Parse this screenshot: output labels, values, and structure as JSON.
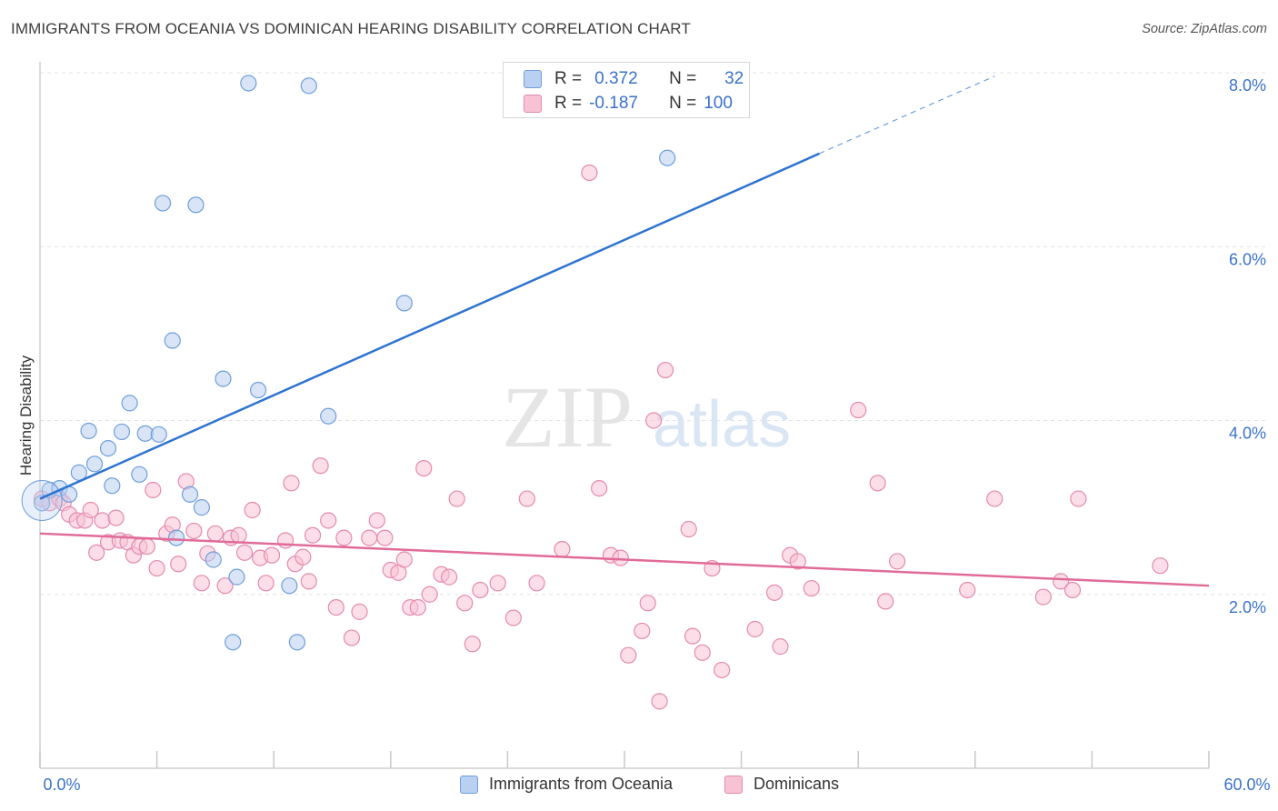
{
  "title": "IMMIGRANTS FROM OCEANIA VS DOMINICAN HEARING DISABILITY CORRELATION CHART",
  "source": "Source: ZipAtlas.com",
  "watermark": {
    "zip": "ZIP",
    "atlas": "atlas"
  },
  "colors": {
    "blue_fill": "#b9d0f0",
    "blue_stroke": "#6f9fdb",
    "blue_line": "#2f74d0",
    "pink_fill": "#f7c2d4",
    "pink_stroke": "#e58ab0",
    "pink_line": "#e06b98",
    "axis_text": "#3a72c9",
    "grid": "#e3e3e3"
  },
  "legend_stats": [
    {
      "r_label": "R =",
      "r_value": "0.372",
      "n_label": "N =",
      "n_value": "32"
    },
    {
      "r_label": "R =",
      "r_value": "-0.187",
      "n_label": "N =",
      "n_value": "100"
    }
  ],
  "legend_bottom": [
    "Immigrants from Oceania",
    "Dominicans"
  ],
  "chart_data": {
    "type": "scatter",
    "title": "IMMIGRANTS FROM OCEANIA VS DOMINICAN HEARING DISABILITY CORRELATION CHART",
    "xlabel": "",
    "ylabel": "Hearing Disability",
    "xlim": [
      0,
      60
    ],
    "ylim": [
      0,
      8
    ],
    "x_tick_labels": [
      "0.0%",
      "60.0%"
    ],
    "y_ticks": [
      2,
      4,
      6,
      8
    ],
    "y_tick_labels": [
      "2.0%",
      "4.0%",
      "6.0%",
      "8.0%"
    ],
    "grid": true,
    "legend_position": "top-center",
    "series": [
      {
        "name": "Immigrants from Oceania",
        "color": "#6f9fdb",
        "r": 0.372,
        "n": 32,
        "trend": {
          "x0": 0,
          "y0": 3.1,
          "x1": 40,
          "y1": 7.07,
          "dashed_to_x": 49,
          "dashed_to_y": 7.96
        },
        "points": [
          [
            0.1,
            3.05
          ],
          [
            0.5,
            3.2
          ],
          [
            1.0,
            3.22
          ],
          [
            1.5,
            3.15
          ],
          [
            2.0,
            3.4
          ],
          [
            2.5,
            3.88
          ],
          [
            2.8,
            3.5
          ],
          [
            3.5,
            3.68
          ],
          [
            3.7,
            3.25
          ],
          [
            4.2,
            3.87
          ],
          [
            4.6,
            4.2
          ],
          [
            5.1,
            3.38
          ],
          [
            5.4,
            3.85
          ],
          [
            6.1,
            3.84
          ],
          [
            6.3,
            6.5
          ],
          [
            6.8,
            4.92
          ],
          [
            7.0,
            2.65
          ],
          [
            7.7,
            3.15
          ],
          [
            8.0,
            6.48
          ],
          [
            8.3,
            3.0
          ],
          [
            8.9,
            2.4
          ],
          [
            9.4,
            4.48
          ],
          [
            9.9,
            1.45
          ],
          [
            10.1,
            2.2
          ],
          [
            10.7,
            7.88
          ],
          [
            11.2,
            4.35
          ],
          [
            12.8,
            2.1
          ],
          [
            13.2,
            1.45
          ],
          [
            13.8,
            7.85
          ],
          [
            14.8,
            4.05
          ],
          [
            18.7,
            5.35
          ],
          [
            32.2,
            7.02
          ]
        ]
      },
      {
        "name": "Dominicans",
        "color": "#e58ab0",
        "r": -0.187,
        "n": 100,
        "trend": {
          "x0": 0,
          "y0": 2.7,
          "x1": 60,
          "y1": 2.1
        },
        "points": [
          [
            0.1,
            3.1
          ],
          [
            0.5,
            3.05
          ],
          [
            1.0,
            3.1
          ],
          [
            1.2,
            3.05
          ],
          [
            1.5,
            2.92
          ],
          [
            1.9,
            2.85
          ],
          [
            2.3,
            2.85
          ],
          [
            2.6,
            2.97
          ],
          [
            2.9,
            2.48
          ],
          [
            3.2,
            2.85
          ],
          [
            3.5,
            2.6
          ],
          [
            3.9,
            2.88
          ],
          [
            4.1,
            2.62
          ],
          [
            4.5,
            2.6
          ],
          [
            4.8,
            2.45
          ],
          [
            5.1,
            2.55
          ],
          [
            5.5,
            2.55
          ],
          [
            5.8,
            3.2
          ],
          [
            6.0,
            2.3
          ],
          [
            6.5,
            2.7
          ],
          [
            6.8,
            2.8
          ],
          [
            7.1,
            2.35
          ],
          [
            7.5,
            3.3
          ],
          [
            7.9,
            2.73
          ],
          [
            8.3,
            2.13
          ],
          [
            8.6,
            2.47
          ],
          [
            9.0,
            2.7
          ],
          [
            9.5,
            2.1
          ],
          [
            9.8,
            2.65
          ],
          [
            10.2,
            2.68
          ],
          [
            10.5,
            2.48
          ],
          [
            10.9,
            2.97
          ],
          [
            11.3,
            2.42
          ],
          [
            11.6,
            2.13
          ],
          [
            11.9,
            2.45
          ],
          [
            12.6,
            2.62
          ],
          [
            12.9,
            3.28
          ],
          [
            13.1,
            2.35
          ],
          [
            13.5,
            2.43
          ],
          [
            13.8,
            2.15
          ],
          [
            14.0,
            2.68
          ],
          [
            14.4,
            3.48
          ],
          [
            14.8,
            2.85
          ],
          [
            15.2,
            1.85
          ],
          [
            15.6,
            2.65
          ],
          [
            16.0,
            1.5
          ],
          [
            16.4,
            1.8
          ],
          [
            16.9,
            2.65
          ],
          [
            17.3,
            2.85
          ],
          [
            17.7,
            2.65
          ],
          [
            18.0,
            2.28
          ],
          [
            18.4,
            2.25
          ],
          [
            18.7,
            2.4
          ],
          [
            19.0,
            1.85
          ],
          [
            19.4,
            1.85
          ],
          [
            19.7,
            3.45
          ],
          [
            20.0,
            2.0
          ],
          [
            20.6,
            2.23
          ],
          [
            21.0,
            2.2
          ],
          [
            21.4,
            3.1
          ],
          [
            21.8,
            1.9
          ],
          [
            22.2,
            1.43
          ],
          [
            22.6,
            2.05
          ],
          [
            23.5,
            2.13
          ],
          [
            24.3,
            1.73
          ],
          [
            25.0,
            3.1
          ],
          [
            25.5,
            2.13
          ],
          [
            26.8,
            2.52
          ],
          [
            28.2,
            6.85
          ],
          [
            28.7,
            3.22
          ],
          [
            29.3,
            2.45
          ],
          [
            29.8,
            2.42
          ],
          [
            30.2,
            1.3
          ],
          [
            30.9,
            1.58
          ],
          [
            31.2,
            1.9
          ],
          [
            31.5,
            4.0
          ],
          [
            31.8,
            0.77
          ],
          [
            32.1,
            4.58
          ],
          [
            33.3,
            2.75
          ],
          [
            33.5,
            1.52
          ],
          [
            34.0,
            1.33
          ],
          [
            34.5,
            2.3
          ],
          [
            35.0,
            1.13
          ],
          [
            36.7,
            1.6
          ],
          [
            37.7,
            2.02
          ],
          [
            38.0,
            1.4
          ],
          [
            38.5,
            2.45
          ],
          [
            38.9,
            2.38
          ],
          [
            39.6,
            2.07
          ],
          [
            42.0,
            4.12
          ],
          [
            43.0,
            3.28
          ],
          [
            43.4,
            1.92
          ],
          [
            44.0,
            2.38
          ],
          [
            47.6,
            2.05
          ],
          [
            49.0,
            3.1
          ],
          [
            51.5,
            1.97
          ],
          [
            52.4,
            2.15
          ],
          [
            53.0,
            2.05
          ],
          [
            57.5,
            2.33
          ],
          [
            53.3,
            3.1
          ]
        ]
      }
    ]
  }
}
